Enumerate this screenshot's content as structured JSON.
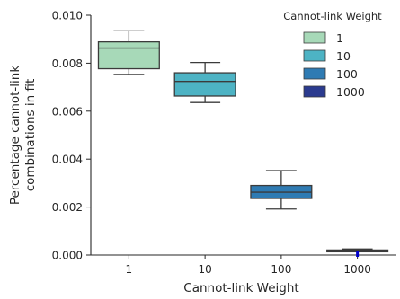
{
  "chart_data": {
    "type": "box",
    "xlabel": "Cannot-link Weight",
    "ylabel": [
      "Percentage cannot-link",
      "combinations in fit"
    ],
    "ylim": [
      0,
      0.01
    ],
    "yticks": [
      "0.000",
      "0.002",
      "0.004",
      "0.006",
      "0.008",
      "0.010"
    ],
    "categories": [
      "1",
      "10",
      "100",
      "1000"
    ],
    "boxes": [
      {
        "category": "1",
        "whislo": 0.00753,
        "q1": 0.00777,
        "med": 0.00863,
        "q3": 0.00889,
        "whishi": 0.00935,
        "color": "#a7d9b8"
      },
      {
        "category": "10",
        "whislo": 0.00636,
        "q1": 0.00663,
        "med": 0.00724,
        "q3": 0.0076,
        "whishi": 0.00803,
        "color": "#4db3c4"
      },
      {
        "category": "100",
        "whislo": 0.00192,
        "q1": 0.00236,
        "med": 0.00262,
        "q3": 0.0029,
        "whishi": 0.00352,
        "color": "#2f7bb3"
      },
      {
        "category": "1000",
        "whislo": 0.00016,
        "q1": 0.00017,
        "med": 0.00019,
        "q3": 0.00021,
        "whishi": 0.00025,
        "color": "#2b3b8f"
      }
    ],
    "outliers": [
      {
        "category": "1000",
        "value": 0.0,
        "color": "#0000cc"
      }
    ],
    "legend": {
      "title": "Cannot-link Weight",
      "placement": "top-right",
      "entries": [
        "1",
        "10",
        "100",
        "1000"
      ]
    },
    "grid": false
  }
}
